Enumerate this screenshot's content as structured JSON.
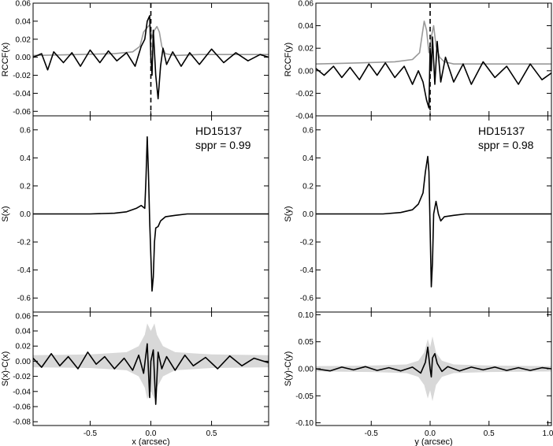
{
  "chart_data": [
    {
      "id": "rccf-x",
      "type": "line",
      "ylabel": "RCCF(x)",
      "xlim": [
        -0.97,
        0.97
      ],
      "ylim": [
        -0.065,
        0.06
      ],
      "yticks": [
        -0.06,
        -0.04,
        -0.02,
        0.0,
        0.02,
        0.04,
        0.06
      ],
      "ytick_labels": [
        "-0.06",
        "-0.04",
        "-0.02",
        "0.00",
        "0.02",
        "0.04",
        "0.06"
      ],
      "vline_x": 0.0,
      "series": [
        {
          "color": "#999999",
          "x": [
            -0.97,
            -0.6,
            -0.3,
            -0.15,
            -0.09,
            -0.06,
            -0.03,
            -0.01,
            0.01,
            0.03,
            0.05,
            0.07,
            0.09,
            0.12,
            0.2,
            0.4,
            0.7,
            0.97
          ],
          "y": [
            0.002,
            0.003,
            0.004,
            0.006,
            0.012,
            0.028,
            0.033,
            0.036,
            0.022,
            0.03,
            0.034,
            0.028,
            0.012,
            0.004,
            0.002,
            0.003,
            0.003,
            0.003
          ]
        },
        {
          "color": "#000000",
          "x": [
            -0.97,
            -0.9,
            -0.85,
            -0.8,
            -0.72,
            -0.65,
            -0.58,
            -0.5,
            -0.42,
            -0.35,
            -0.28,
            -0.2,
            -0.13,
            -0.08,
            -0.05,
            -0.03,
            -0.01,
            0.0,
            0.01,
            0.02,
            0.04,
            0.06,
            0.08,
            0.1,
            0.13,
            0.18,
            0.25,
            0.32,
            0.4,
            0.5,
            0.6,
            0.7,
            0.8,
            0.9,
            0.97
          ],
          "y": [
            0.0,
            0.004,
            -0.014,
            0.006,
            -0.006,
            0.005,
            -0.01,
            0.008,
            -0.006,
            0.007,
            -0.004,
            0.005,
            -0.01,
            0.012,
            0.02,
            0.04,
            0.046,
            0.0,
            -0.02,
            0.03,
            -0.02,
            -0.046,
            -0.01,
            0.01,
            -0.008,
            0.006,
            -0.01,
            0.005,
            -0.008,
            0.009,
            -0.006,
            0.005,
            -0.004,
            0.003,
            0.0
          ]
        }
      ]
    },
    {
      "id": "rccf-y",
      "type": "line",
      "ylabel": "RCCF(y)",
      "xlim": [
        -0.97,
        1.03
      ],
      "ylim": [
        -0.04,
        0.06
      ],
      "yticks": [
        -0.04,
        -0.02,
        0.0,
        0.02,
        0.04,
        0.06
      ],
      "ytick_labels": [
        "-0.04",
        "-0.02",
        "0.00",
        "0.02",
        "0.04",
        "0.06"
      ],
      "vline_x": 0.0,
      "series": [
        {
          "color": "#999999",
          "x": [
            -0.97,
            -0.6,
            -0.3,
            -0.15,
            -0.09,
            -0.07,
            -0.05,
            -0.03,
            -0.01,
            0.01,
            0.03,
            0.05,
            0.08,
            0.12,
            0.2,
            0.5,
            0.8,
            1.03
          ],
          "y": [
            0.006,
            0.007,
            0.008,
            0.01,
            0.016,
            0.03,
            0.044,
            0.036,
            0.016,
            0.03,
            0.04,
            0.022,
            0.012,
            0.008,
            0.006,
            0.006,
            0.006,
            0.006
          ]
        },
        {
          "color": "#000000",
          "x": [
            -0.97,
            -0.9,
            -0.82,
            -0.75,
            -0.68,
            -0.6,
            -0.52,
            -0.45,
            -0.38,
            -0.3,
            -0.22,
            -0.15,
            -0.1,
            -0.06,
            -0.03,
            -0.01,
            0.0,
            0.01,
            0.02,
            0.04,
            0.06,
            0.09,
            0.13,
            0.2,
            0.28,
            0.35,
            0.45,
            0.55,
            0.65,
            0.75,
            0.85,
            0.95,
            1.03
          ],
          "y": [
            0.002,
            -0.004,
            0.004,
            -0.006,
            0.003,
            -0.008,
            0.006,
            -0.004,
            0.007,
            -0.006,
            0.004,
            -0.012,
            0.0,
            -0.01,
            -0.026,
            -0.033,
            0.02,
            0.0,
            0.03,
            -0.012,
            0.026,
            -0.01,
            0.012,
            -0.01,
            0.006,
            -0.012,
            0.008,
            -0.006,
            0.004,
            -0.012,
            0.006,
            -0.008,
            -0.002
          ]
        }
      ]
    },
    {
      "id": "s-x",
      "type": "line",
      "ylabel": "S(x)",
      "annotation": [
        "HD15137",
        "sppr = 0.99"
      ],
      "xlim": [
        -0.97,
        0.97
      ],
      "ylim": [
        -0.7,
        0.7
      ],
      "yticks": [
        -0.6,
        -0.4,
        -0.2,
        0.0,
        0.2,
        0.4,
        0.6
      ],
      "ytick_labels": [
        "-0.6",
        "-0.4",
        "-0.2",
        "0.0",
        "0.2",
        "0.4",
        "0.6"
      ],
      "series": [
        {
          "color": "#000000",
          "x": [
            -0.97,
            -0.7,
            -0.5,
            -0.3,
            -0.2,
            -0.12,
            -0.08,
            -0.05,
            -0.04,
            -0.03,
            -0.02,
            -0.01,
            0.0,
            0.01,
            0.02,
            0.03,
            0.04,
            0.06,
            0.08,
            0.12,
            0.2,
            0.3,
            0.5,
            0.7,
            0.97
          ],
          "y": [
            0.0,
            0.0,
            0.0,
            0.005,
            0.015,
            0.04,
            0.06,
            0.04,
            0.25,
            0.55,
            0.3,
            -0.05,
            -0.3,
            -0.55,
            -0.45,
            -0.2,
            -0.1,
            -0.09,
            -0.05,
            -0.02,
            -0.01,
            0.0,
            0.0,
            0.0,
            0.0
          ]
        }
      ]
    },
    {
      "id": "s-y",
      "type": "line",
      "ylabel": "S(y)",
      "annotation": [
        "HD15137",
        "sppr = 0.98"
      ],
      "xlim": [
        -0.97,
        1.03
      ],
      "ylim": [
        -0.7,
        0.7
      ],
      "yticks": [
        -0.6,
        -0.4,
        -0.2,
        0.0,
        0.2,
        0.4,
        0.6
      ],
      "ytick_labels": [
        "-0.6",
        "-0.4",
        "-0.2",
        "0.0",
        "0.2",
        "0.4",
        "0.6"
      ],
      "series": [
        {
          "color": "#000000",
          "x": [
            -0.97,
            -0.6,
            -0.4,
            -0.25,
            -0.15,
            -0.1,
            -0.06,
            -0.04,
            -0.02,
            -0.01,
            0.0,
            0.01,
            0.02,
            0.03,
            0.05,
            0.07,
            0.09,
            0.12,
            0.2,
            0.3,
            0.5,
            0.8,
            1.03
          ],
          "y": [
            0.0,
            0.0,
            0.0,
            0.01,
            0.03,
            0.07,
            0.15,
            0.3,
            0.41,
            0.3,
            -0.1,
            -0.52,
            -0.35,
            0.0,
            0.09,
            0.0,
            -0.05,
            -0.02,
            -0.01,
            0.0,
            0.0,
            0.0,
            0.0
          ]
        }
      ]
    },
    {
      "id": "diff-x",
      "type": "line",
      "ylabel": "S(x)-C(x)",
      "xlabel": "x (arcsec)",
      "xlim": [
        -0.97,
        0.97
      ],
      "ylim": [
        -0.085,
        0.065
      ],
      "yticks": [
        -0.08,
        -0.06,
        -0.04,
        -0.02,
        0.0,
        0.02,
        0.04,
        0.06
      ],
      "ytick_labels": [
        "-0.08",
        "-0.06",
        "-0.04",
        "-0.02",
        "0.00",
        "0.02",
        "0.04",
        "0.06"
      ],
      "xticks": [
        -0.5,
        0.0,
        0.5
      ],
      "xtick_labels": [
        "-0.5",
        "0.0",
        "0.5"
      ],
      "band": {
        "color": "#d8d8d8",
        "x": [
          -0.97,
          -0.5,
          -0.2,
          -0.1,
          -0.05,
          -0.03,
          0.0,
          0.03,
          0.05,
          0.1,
          0.2,
          0.5,
          0.97
        ],
        "half_width": [
          0.008,
          0.009,
          0.012,
          0.02,
          0.035,
          0.05,
          0.04,
          0.05,
          0.035,
          0.02,
          0.012,
          0.009,
          0.008
        ]
      },
      "series": [
        {
          "color": "#000000",
          "x": [
            -0.97,
            -0.9,
            -0.82,
            -0.75,
            -0.68,
            -0.6,
            -0.52,
            -0.45,
            -0.38,
            -0.3,
            -0.22,
            -0.15,
            -0.1,
            -0.06,
            -0.03,
            -0.01,
            0.0,
            0.02,
            0.04,
            0.06,
            0.09,
            0.13,
            0.2,
            0.28,
            0.35,
            0.45,
            0.55,
            0.65,
            0.75,
            0.85,
            0.97
          ],
          "y": [
            0.004,
            -0.008,
            0.01,
            -0.006,
            0.006,
            -0.01,
            0.012,
            -0.004,
            0.006,
            -0.01,
            0.004,
            -0.012,
            0.008,
            -0.016,
            0.023,
            -0.048,
            0.0,
            0.015,
            -0.057,
            0.012,
            -0.01,
            0.006,
            -0.012,
            0.008,
            -0.006,
            0.005,
            -0.01,
            0.007,
            -0.006,
            0.004,
            -0.002
          ]
        }
      ]
    },
    {
      "id": "diff-y",
      "type": "line",
      "ylabel": "S(y)-C(y)",
      "xlabel": "y (arcsec)",
      "xlim": [
        -0.97,
        1.03
      ],
      "ylim": [
        -0.105,
        0.105
      ],
      "yticks": [
        -0.1,
        -0.05,
        0.0,
        0.05,
        0.1
      ],
      "ytick_labels": [
        "-0.10",
        "-0.05",
        "0.00",
        "0.05",
        "0.10"
      ],
      "xticks": [
        -0.5,
        0.0,
        0.5,
        1.0
      ],
      "xtick_labels": [
        "-0.5",
        "0.0",
        "0.5",
        "1.0"
      ],
      "band": {
        "color": "#d8d8d8",
        "x": [
          -0.97,
          -0.5,
          -0.2,
          -0.1,
          -0.05,
          -0.02,
          0.0,
          0.02,
          0.05,
          0.1,
          0.2,
          0.5,
          1.03
        ],
        "half_width": [
          0.005,
          0.006,
          0.008,
          0.015,
          0.03,
          0.055,
          0.04,
          0.06,
          0.03,
          0.015,
          0.008,
          0.006,
          0.005
        ]
      },
      "series": [
        {
          "color": "#000000",
          "x": [
            -0.97,
            -0.85,
            -0.75,
            -0.65,
            -0.55,
            -0.45,
            -0.35,
            -0.25,
            -0.15,
            -0.08,
            -0.04,
            -0.02,
            0.0,
            0.01,
            0.02,
            0.04,
            0.06,
            0.1,
            0.15,
            0.25,
            0.35,
            0.45,
            0.55,
            0.65,
            0.75,
            0.85,
            0.95,
            1.03
          ],
          "y": [
            0.0,
            -0.004,
            0.003,
            -0.002,
            0.004,
            -0.003,
            0.002,
            -0.004,
            0.003,
            -0.008,
            0.012,
            0.04,
            0.0,
            -0.015,
            0.02,
            0.028,
            0.01,
            -0.005,
            0.004,
            -0.004,
            0.003,
            -0.002,
            0.003,
            -0.003,
            0.002,
            -0.003,
            0.002,
            0.0
          ]
        }
      ]
    }
  ]
}
